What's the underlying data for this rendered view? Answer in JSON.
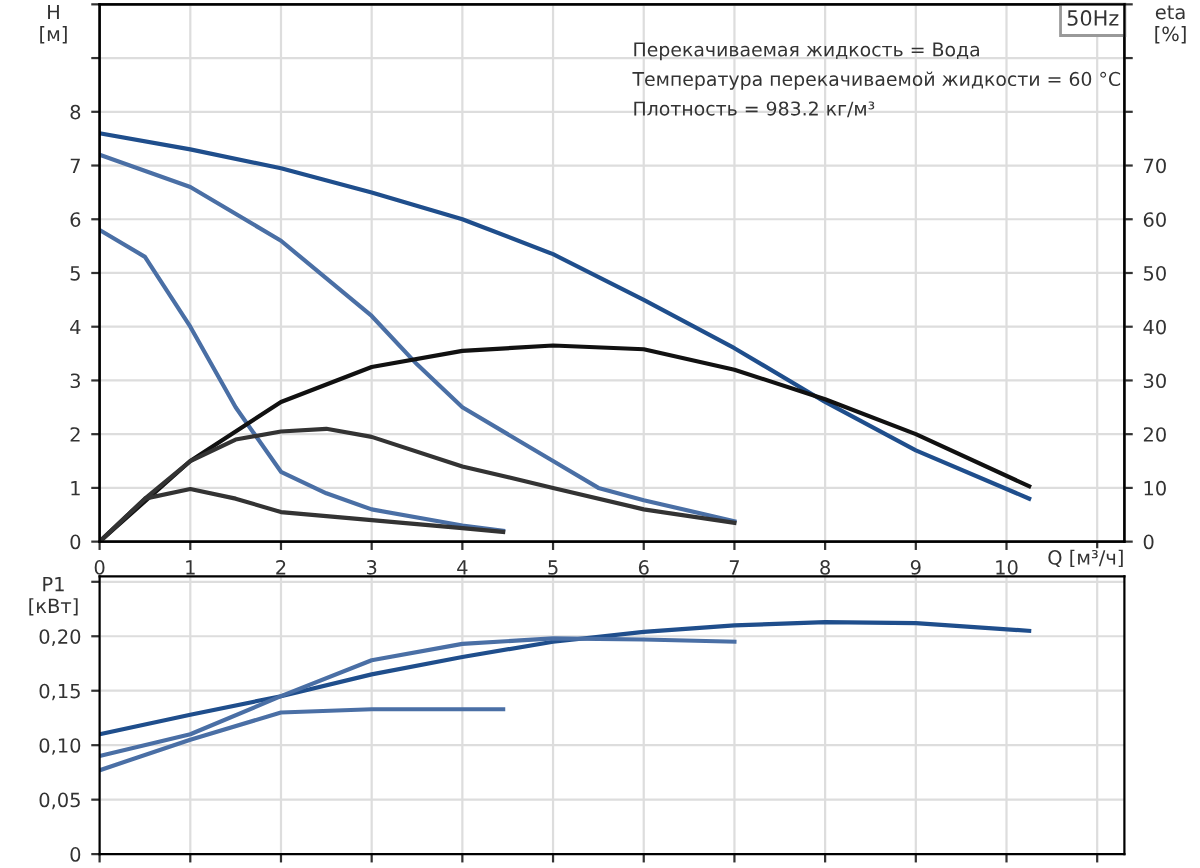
{
  "chart_data": [
    {
      "type": "line",
      "title": "50Hz",
      "xlabel": "Q [м³/ч]",
      "ylabel": "H\n[м]",
      "y2label": "eta\n[%]",
      "annotations": [
        "Перекачиваемая жидкость = Вода",
        "Температура перекачиваемой жидкости = 60 °C",
        "Плотность = 983.2 кг/м³"
      ],
      "xlim": [
        0,
        11.3
      ],
      "xticks": [
        0,
        1,
        2,
        3,
        4,
        5,
        6,
        7,
        8,
        9,
        10,
        {
          "value": 11,
          "label": null
        }
      ],
      "ylim": [
        0,
        10
      ],
      "yticks": [
        0,
        1,
        2,
        3,
        4,
        5,
        6,
        7,
        8,
        {
          "value": 9,
          "label": null
        },
        {
          "value": 10,
          "label": null
        }
      ],
      "y2lim": [
        0,
        100
      ],
      "y2ticks": [
        0,
        10,
        20,
        30,
        40,
        50,
        60,
        70,
        {
          "value": 80,
          "label": null
        },
        {
          "value": 90,
          "label": null
        },
        {
          "value": 100,
          "label": null
        }
      ],
      "grid": true,
      "legend": false,
      "series": [
        {
          "color": "#1f4e8c",
          "x": [
            0,
            1,
            2,
            3,
            4,
            5,
            6,
            7,
            8,
            9,
            10.25
          ],
          "values": [
            7.6,
            7.3,
            6.95,
            6.5,
            6.0,
            5.35,
            4.5,
            3.6,
            2.6,
            1.7,
            0.8
          ]
        },
        {
          "color": "#4a6fa5",
          "x": [
            0,
            1,
            2,
            3,
            3.5,
            4,
            5,
            5.5,
            6,
            7
          ],
          "values": [
            7.2,
            6.6,
            5.6,
            4.2,
            3.3,
            2.5,
            1.5,
            1.0,
            0.77,
            0.38
          ]
        },
        {
          "color": "#4a6fa5",
          "x": [
            0,
            0.5,
            1,
            1.5,
            2,
            2.5,
            3,
            4,
            4.45
          ],
          "values": [
            5.8,
            5.3,
            4.0,
            2.5,
            1.3,
            0.9,
            0.6,
            0.3,
            0.2
          ]
        },
        {
          "color": "#111111",
          "axis": "y2",
          "x": [
            0,
            1,
            2,
            3,
            4,
            5,
            6,
            7,
            8,
            9,
            10.25
          ],
          "values": [
            0,
            15,
            26,
            32.5,
            35.5,
            36.5,
            35.8,
            32,
            26.5,
            20,
            10.3
          ]
        },
        {
          "color": "#333333",
          "axis": "y2",
          "x": [
            0,
            0.5,
            1,
            1.5,
            2,
            2.5,
            3,
            4,
            5,
            6,
            7
          ],
          "values": [
            0,
            8,
            15,
            19,
            20.5,
            21,
            19.5,
            14,
            10,
            6,
            3.5
          ]
        },
        {
          "color": "#333333",
          "axis": "y2",
          "x": [
            0,
            0.5,
            1,
            1.5,
            2,
            3,
            4,
            4.45
          ],
          "values": [
            0,
            8,
            9.8,
            8,
            5.5,
            4,
            2.5,
            1.8
          ]
        }
      ]
    },
    {
      "type": "line",
      "ylabel": "P1\n[кВт]",
      "xlim": [
        0,
        11.3
      ],
      "xticks": [
        0,
        1,
        2,
        3,
        4,
        5,
        6,
        7,
        8,
        9,
        10,
        11
      ],
      "ylim": [
        0,
        0.255
      ],
      "yticks": [
        {
          "value": 0,
          "label": "0"
        },
        {
          "value": 0.05,
          "label": "0,05"
        },
        {
          "value": 0.1,
          "label": "0,10"
        },
        {
          "value": 0.15,
          "label": "0,15"
        },
        {
          "value": 0.2,
          "label": "0,20"
        },
        {
          "value": 0.25,
          "label": null
        }
      ],
      "tick_labels": "y",
      "grid": true,
      "legend": false,
      "series": [
        {
          "color": "#1f4e8c",
          "x": [
            0,
            1,
            2,
            3,
            4,
            5,
            6,
            7,
            8,
            9,
            10.25
          ],
          "values": [
            0.11,
            0.128,
            0.145,
            0.165,
            0.181,
            0.195,
            0.204,
            0.21,
            0.213,
            0.212,
            0.205
          ]
        },
        {
          "color": "#4a6fa5",
          "x": [
            0,
            1,
            2,
            3,
            4,
            5,
            6,
            7
          ],
          "values": [
            0.09,
            0.11,
            0.145,
            0.178,
            0.193,
            0.198,
            0.197,
            0.195
          ]
        },
        {
          "color": "#4a6fa5",
          "x": [
            0,
            1,
            2,
            3,
            4.45
          ],
          "values": [
            0.077,
            0.105,
            0.13,
            0.133,
            0.133
          ]
        }
      ]
    }
  ]
}
